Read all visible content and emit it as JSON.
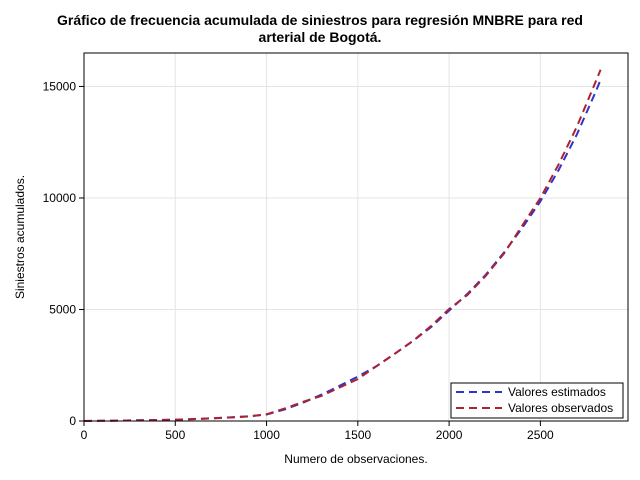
{
  "chart_data": {
    "type": "line",
    "title_line1": "Gráfico de frecuencia acumulada de siniestros para regresión MNBRE para red",
    "title_line2": "arterial de Bogotá.",
    "xlabel": "Numero de observaciones.",
    "ylabel": "Siniestros acumulados.",
    "xlim": [
      0,
      2980
    ],
    "ylim": [
      0,
      16500
    ],
    "xticks": [
      0,
      500,
      1000,
      1500,
      2000,
      2500
    ],
    "yticks": [
      0,
      5000,
      10000,
      15000
    ],
    "xtick_labels": [
      "0",
      "500",
      "1000",
      "1500",
      "2000",
      "2500"
    ],
    "ytick_labels": [
      "0",
      "5000",
      "10000",
      "15000"
    ],
    "grid": true,
    "legend_position": "bottom-right",
    "series": [
      {
        "name": "Valores estimados",
        "color": "#3333cc",
        "dash": "dashed",
        "x": [
          0,
          100,
          200,
          300,
          400,
          500,
          600,
          700,
          800,
          900,
          1000,
          1100,
          1200,
          1300,
          1400,
          1500,
          1600,
          1700,
          1800,
          1900,
          2000,
          2100,
          2200,
          2300,
          2400,
          2500,
          2600,
          2700,
          2800,
          2830
        ],
        "y": [
          0,
          10,
          20,
          30,
          45,
          60,
          90,
          120,
          160,
          210,
          290,
          520,
          820,
          1180,
          1580,
          1990,
          2450,
          3000,
          3580,
          4200,
          4950,
          5700,
          6550,
          7550,
          8650,
          9850,
          11250,
          12850,
          14700,
          15300
        ]
      },
      {
        "name": "Valores observados",
        "color": "#aa2233",
        "dash": "dashed",
        "x": [
          0,
          100,
          200,
          300,
          400,
          500,
          600,
          700,
          800,
          900,
          1000,
          1100,
          1200,
          1300,
          1400,
          1500,
          1600,
          1700,
          1800,
          1900,
          2000,
          2100,
          2200,
          2300,
          2400,
          2500,
          2600,
          2700,
          2800,
          2830
        ],
        "y": [
          0,
          10,
          20,
          30,
          40,
          55,
          85,
          115,
          155,
          200,
          300,
          560,
          860,
          1120,
          1500,
          1880,
          2450,
          3000,
          3580,
          4250,
          5020,
          5650,
          6500,
          7500,
          8750,
          10000,
          11500,
          13200,
          15150,
          15750
        ]
      }
    ]
  }
}
